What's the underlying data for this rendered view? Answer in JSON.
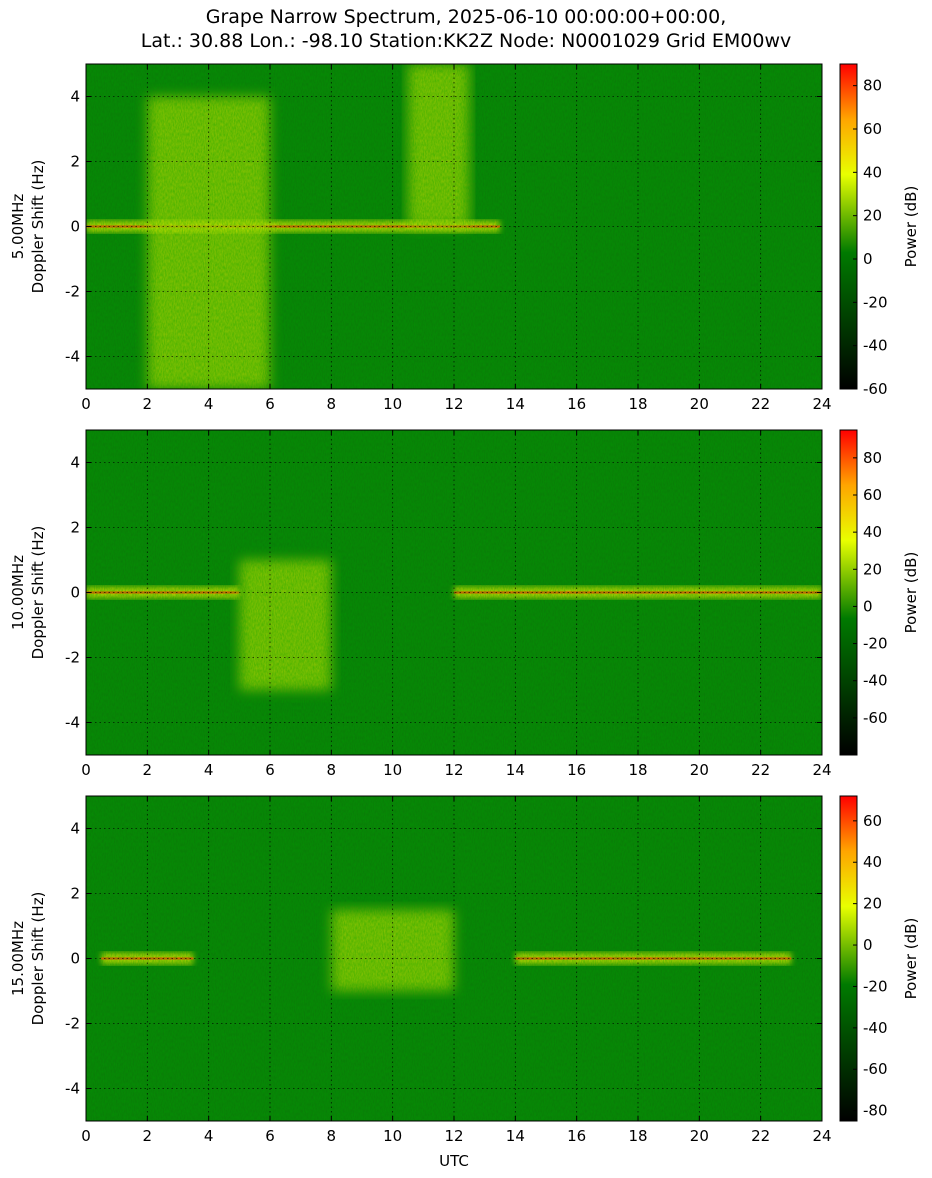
{
  "title": {
    "line1": "Grape Narrow Spectrum, 2025-06-10 00:00:00+00:00,",
    "line2": "Lat.: 30.88 Lon.: -98.10 Station:KK2Z Node: N0001029 Grid EM00wv"
  },
  "colors": {
    "colormap": [
      "#000000",
      "#007a00",
      "#e8ff00",
      "#ffa500",
      "#ff0000"
    ],
    "background_green": "#0a7a08",
    "grid": "#000000"
  },
  "chart_data": [
    {
      "type": "heatmap",
      "ylabel_line1": "5.00MHz",
      "ylabel_line2": "Doppler Shift (Hz)",
      "xlim": [
        0,
        24
      ],
      "ylim": [
        -5,
        5
      ],
      "xticks": [
        0,
        2,
        4,
        6,
        8,
        10,
        12,
        14,
        16,
        18,
        20,
        22,
        24
      ],
      "yticks": [
        -4,
        -2,
        0,
        2,
        4
      ],
      "grid": true,
      "colorbar": {
        "label": "Power (dB)",
        "range": [
          -60,
          90
        ],
        "ticks": [
          -60,
          -40,
          -20,
          0,
          20,
          40,
          60,
          80
        ]
      },
      "features": [
        {
          "x": [
            0,
            13.5
          ],
          "y": 0,
          "note": "strong carrier"
        },
        {
          "x": [
            2,
            6
          ],
          "y": [
            -5,
            4
          ],
          "note": "broad spread"
        },
        {
          "x": [
            10.5,
            12.5
          ],
          "y": [
            0,
            5
          ],
          "note": "bright plume"
        }
      ]
    },
    {
      "type": "heatmap",
      "ylabel_line1": "10.00MHz",
      "ylabel_line2": "Doppler Shift (Hz)",
      "xlim": [
        0,
        24
      ],
      "ylim": [
        -5,
        5
      ],
      "xticks": [
        0,
        2,
        4,
        6,
        8,
        10,
        12,
        14,
        16,
        18,
        20,
        22,
        24
      ],
      "yticks": [
        -4,
        -2,
        0,
        2,
        4
      ],
      "grid": true,
      "colorbar": {
        "label": "Power (dB)",
        "range": [
          -80,
          95
        ],
        "ticks": [
          -60,
          -40,
          -20,
          0,
          20,
          40,
          60,
          80
        ]
      },
      "features": [
        {
          "x": [
            0,
            5
          ],
          "y": 0,
          "note": "strong carrier"
        },
        {
          "x": [
            5,
            8
          ],
          "y": [
            -3,
            1
          ],
          "note": "spread"
        },
        {
          "x": [
            12,
            24
          ],
          "y": 0,
          "note": "carrier"
        }
      ]
    },
    {
      "type": "heatmap",
      "ylabel_line1": "15.00MHz",
      "ylabel_line2": "Doppler Shift (Hz)",
      "xlabel": "UTC",
      "xlim": [
        0,
        24
      ],
      "ylim": [
        -5,
        5
      ],
      "xticks": [
        0,
        2,
        4,
        6,
        8,
        10,
        12,
        14,
        16,
        18,
        20,
        22,
        24
      ],
      "yticks": [
        -4,
        -2,
        0,
        2,
        4
      ],
      "grid": true,
      "colorbar": {
        "label": "Power (dB)",
        "range": [
          -85,
          72
        ],
        "ticks": [
          -80,
          -60,
          -40,
          -20,
          0,
          20,
          40,
          60
        ]
      },
      "features": [
        {
          "x": [
            0.5,
            3.5
          ],
          "y": 0,
          "note": "strong carrier"
        },
        {
          "x": [
            8,
            12
          ],
          "y": [
            -1,
            1.5
          ],
          "note": "spread"
        },
        {
          "x": [
            14,
            23
          ],
          "y": 0,
          "note": "carrier"
        }
      ]
    }
  ]
}
